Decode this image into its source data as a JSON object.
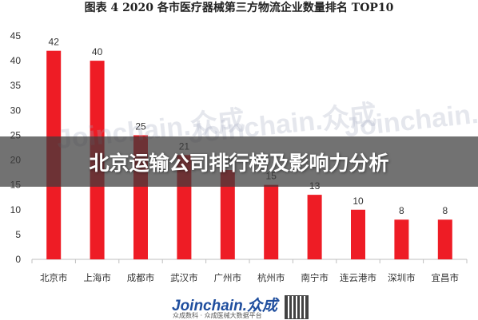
{
  "page": {
    "title": "图表 4  2020 各市医疗器械第三方物流企业数量排名 TOP10",
    "banner": "北京运输公司排行榜及影响力分析",
    "watermark": "Joinchain.众成",
    "footer_brand": "Joinchain.众成",
    "footer_sub": "众成数科 · 众成医械大数据平台"
  },
  "colors": {
    "bar": "#ee1c25",
    "axis": "#bfbfbf",
    "banner_bg": "#3c3c3c"
  },
  "chart_data": {
    "type": "bar",
    "title": "图表 4  2020 各市医疗器械第三方物流企业数量排名 TOP10",
    "categories": [
      "北京市",
      "上海市",
      "成都市",
      "武汉市",
      "广州市",
      "杭州市",
      "南宁市",
      "连云港市",
      "深圳市",
      "宜昌市"
    ],
    "values": [
      42,
      40,
      25,
      21,
      18,
      15,
      13,
      10,
      8,
      8
    ],
    "ylim": [
      0,
      45
    ],
    "yticks": [
      0,
      5,
      10,
      15,
      20,
      25,
      30,
      35,
      40,
      45
    ],
    "grid": false,
    "legend": "none"
  }
}
